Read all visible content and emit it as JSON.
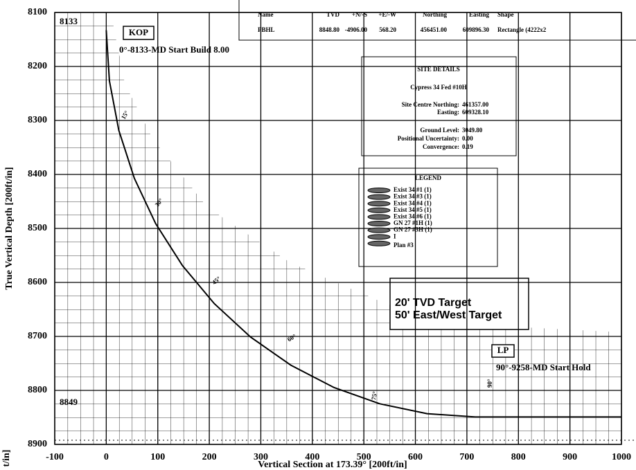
{
  "chart_data": {
    "type": "line",
    "y_label": "True Vertical Depth [200ft/in]",
    "x_label": "Vertical Section at 173.39° [200ft/in]",
    "fragment_label": "t/in]",
    "xlim": [
      -100,
      1000
    ],
    "ylim": [
      8100,
      8900
    ],
    "y_inverted": true,
    "xticks": [
      -100,
      0,
      100,
      200,
      300,
      400,
      500,
      600,
      700,
      800,
      900,
      1000
    ],
    "yticks": [
      8100,
      8200,
      8300,
      8400,
      8500,
      8600,
      8700,
      8800,
      8900
    ],
    "grid": true,
    "series": [
      {
        "color": "#000000",
        "x": [
          0,
          0,
          6.1,
          24.4,
          54.5,
          95.9,
          148.0,
          209.8,
          280.2,
          358.1,
          442.1,
          530.8,
          622.7,
          716.2,
          1000
        ],
        "values": [
          8133,
          8133,
          8226.5,
          8318.4,
          8407.1,
          8491.1,
          8569.0,
          8639.4,
          8701.2,
          8753.2,
          8794.7,
          8824.8,
          8843.1,
          8849.2,
          8849.2
        ]
      }
    ],
    "annotations": [
      "8133",
      "KOP",
      "0°-8133-MD Start Build 8.00",
      "15°",
      "30°",
      "45°",
      "60°",
      "75°",
      "90°",
      "LP",
      "90°-9258-MD Start Hold",
      "8849",
      "20' TVD Target",
      "50' East/West Target"
    ],
    "site_details": {
      "title": "SITE DETAILS",
      "well": "Cypress 34 Fed #10H",
      "rows": [
        [
          "Site Centre Northing:",
          "461357.00"
        ],
        [
          "Easting:",
          "609328.10"
        ],
        [
          "Ground Level:",
          "3049.80"
        ],
        [
          "Positional Uncertainty:",
          "0.00"
        ],
        [
          "Convergence:",
          "0.19"
        ]
      ]
    },
    "legend": {
      "title": "LEGEND",
      "entries": [
        "Exist 34 #1 (1)",
        "Exist 34 #3 (1)",
        "Exist 34 #4 (1)",
        "Exist 34 #5 (1)",
        "Exist 34 #6 (1)",
        "GN 27 #1H (1)",
        "GN 27 #3H (1)",
        "I",
        "Plan #3"
      ]
    },
    "target_table": {
      "columns": [
        "Name",
        "TVD",
        "+N/-S",
        "+E/-W",
        "Northing",
        "Easting",
        "Shape"
      ],
      "rows": [
        [
          "PBHL",
          "8848.80",
          "-4906.00",
          "568.20",
          "456451.00",
          "609896.30",
          "Rectangle (4222x2"
        ]
      ]
    }
  }
}
